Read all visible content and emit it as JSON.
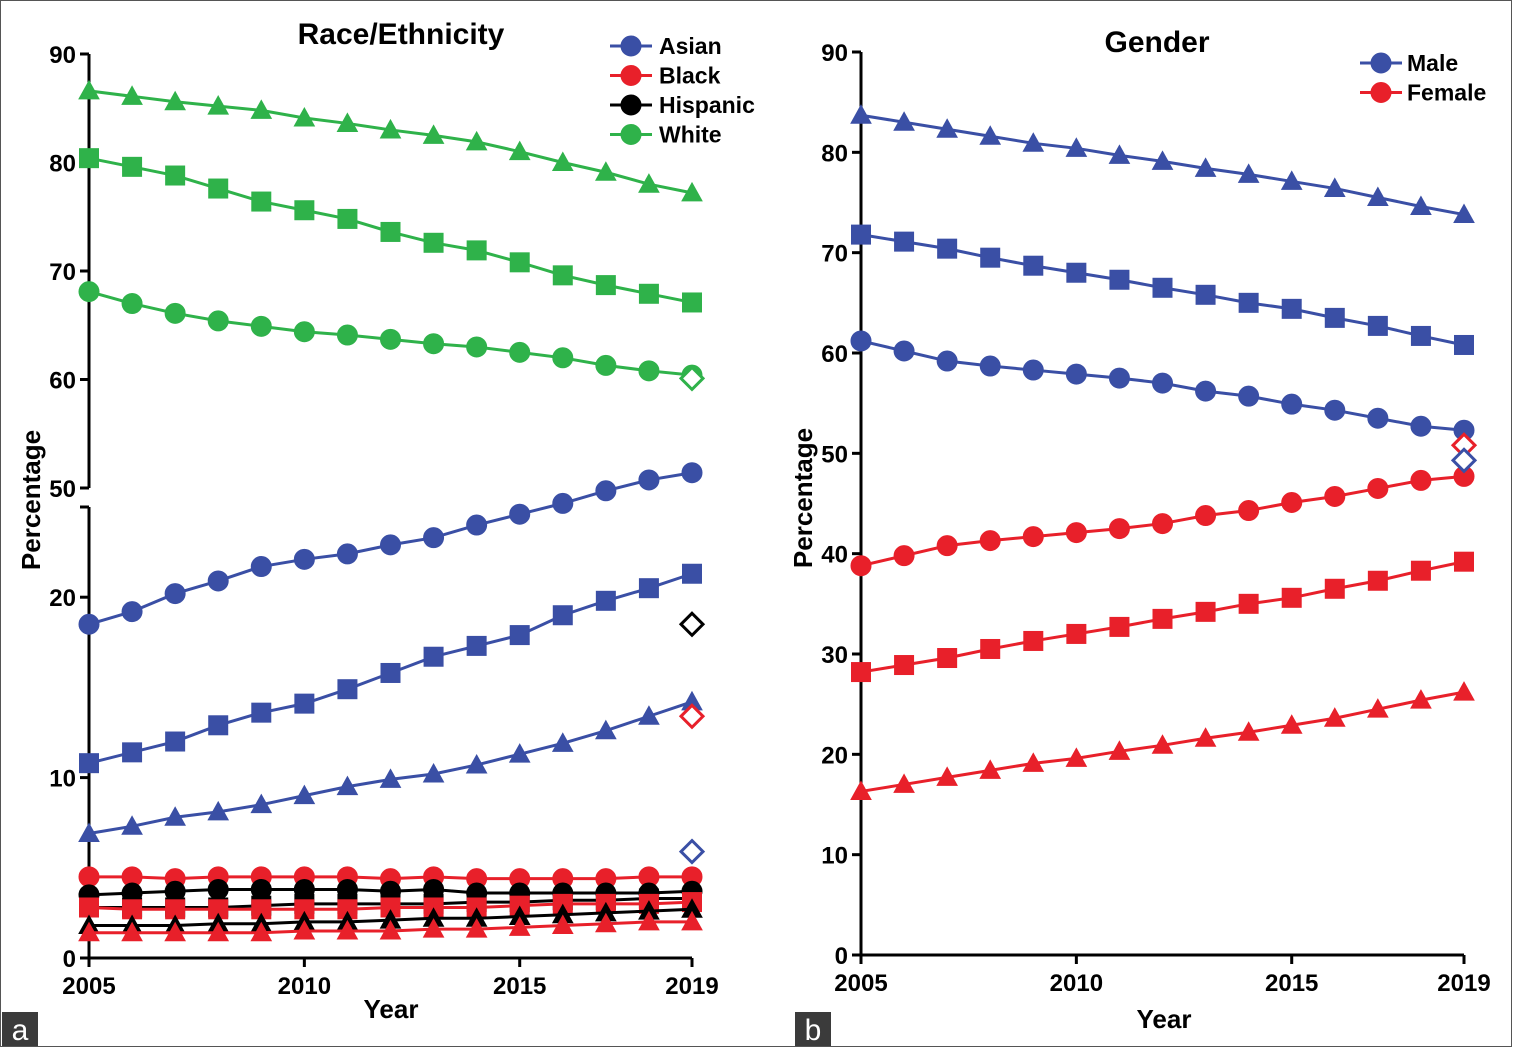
{
  "chart_data": [
    {
      "panel": "a",
      "type": "line",
      "title": "Race/Ethnicity",
      "xlabel": "Year",
      "ylabel": "Percentage",
      "y_axis_broken": true,
      "ylim_lower": [
        0,
        25
      ],
      "ylim_upper": [
        50,
        90
      ],
      "yticks_lower": [
        "0",
        "10",
        "20"
      ],
      "yticks_upper": [
        "50",
        "60",
        "70",
        "80",
        "90"
      ],
      "xticks": [
        "2005",
        "2010",
        "2015",
        "2019"
      ],
      "x": [
        2005,
        2006,
        2007,
        2008,
        2009,
        2010,
        2011,
        2012,
        2013,
        2014,
        2015,
        2016,
        2017,
        2018,
        2019
      ],
      "legend": [
        {
          "label": "Asian",
          "color": "#3a4fa5"
        },
        {
          "label": "Black",
          "color": "#e8202a"
        },
        {
          "label": "Hispanic",
          "color": "#000000"
        },
        {
          "label": "White",
          "color": "#2fb24a"
        }
      ],
      "legend_position": "top-right",
      "series": [
        {
          "group": "White",
          "color": "#2fb24a",
          "marker": "triangle",
          "values": [
            86.6,
            86.1,
            85.6,
            85.2,
            84.8,
            84.1,
            83.6,
            83.0,
            82.5,
            81.9,
            81.0,
            80.0,
            79.1,
            78.0,
            77.2
          ]
        },
        {
          "group": "White",
          "color": "#2fb24a",
          "marker": "square",
          "values": [
            80.4,
            79.6,
            78.8,
            77.6,
            76.4,
            75.6,
            74.8,
            73.6,
            72.6,
            71.9,
            70.8,
            69.6,
            68.7,
            67.9,
            67.1
          ]
        },
        {
          "group": "White",
          "color": "#2fb24a",
          "marker": "circle",
          "values": [
            68.1,
            67.0,
            66.1,
            65.4,
            64.9,
            64.4,
            64.1,
            63.7,
            63.3,
            63.0,
            62.5,
            62.0,
            61.3,
            60.8,
            60.4
          ]
        },
        {
          "group": "Asian",
          "color": "#3a4fa5",
          "marker": "circle",
          "values": [
            18.5,
            19.2,
            20.2,
            20.9,
            21.7,
            22.1,
            22.4,
            22.9,
            23.3,
            24.0,
            24.6,
            25.2,
            25.9,
            26.5,
            26.9
          ]
        },
        {
          "group": "Asian",
          "color": "#3a4fa5",
          "marker": "square",
          "values": [
            10.8,
            11.4,
            12.0,
            12.9,
            13.6,
            14.1,
            14.9,
            15.8,
            16.7,
            17.3,
            17.9,
            19.0,
            19.8,
            20.5,
            21.3
          ]
        },
        {
          "group": "Asian",
          "color": "#3a4fa5",
          "marker": "triangle",
          "values": [
            6.9,
            7.3,
            7.8,
            8.1,
            8.5,
            9.0,
            9.5,
            9.9,
            10.2,
            10.7,
            11.3,
            11.9,
            12.6,
            13.4,
            14.2
          ]
        },
        {
          "group": "Black",
          "color": "#e8202a",
          "marker": "circle",
          "values": [
            4.5,
            4.5,
            4.4,
            4.5,
            4.5,
            4.5,
            4.5,
            4.4,
            4.5,
            4.4,
            4.4,
            4.4,
            4.4,
            4.5,
            4.5
          ]
        },
        {
          "group": "Hispanic",
          "color": "#000000",
          "marker": "circle",
          "values": [
            3.5,
            3.6,
            3.7,
            3.8,
            3.8,
            3.8,
            3.8,
            3.7,
            3.8,
            3.6,
            3.6,
            3.6,
            3.6,
            3.6,
            3.7
          ]
        },
        {
          "group": "Hispanic",
          "color": "#000000",
          "marker": "square",
          "values": [
            2.8,
            2.8,
            2.8,
            2.8,
            2.9,
            3.0,
            3.0,
            3.0,
            3.0,
            3.1,
            3.1,
            3.2,
            3.2,
            3.3,
            3.3
          ]
        },
        {
          "group": "Black",
          "color": "#e8202a",
          "marker": "square",
          "values": [
            2.8,
            2.7,
            2.7,
            2.7,
            2.7,
            2.7,
            2.7,
            2.8,
            2.8,
            2.8,
            2.9,
            3.0,
            3.0,
            3.0,
            3.1
          ]
        },
        {
          "group": "Hispanic",
          "color": "#000000",
          "marker": "triangle",
          "values": [
            1.8,
            1.8,
            1.8,
            1.9,
            1.9,
            2.0,
            2.0,
            2.1,
            2.2,
            2.2,
            2.3,
            2.4,
            2.5,
            2.6,
            2.7
          ]
        },
        {
          "group": "Black",
          "color": "#e8202a",
          "marker": "triangle",
          "values": [
            1.4,
            1.4,
            1.4,
            1.4,
            1.4,
            1.5,
            1.5,
            1.5,
            1.6,
            1.6,
            1.7,
            1.8,
            1.9,
            2.0,
            2.0
          ]
        }
      ],
      "reference_points": [
        {
          "x": 2019,
          "value": 60.1,
          "color": "#2fb24a"
        },
        {
          "x": 2019,
          "value": 18.5,
          "color": "#000000"
        },
        {
          "x": 2019,
          "value": 13.4,
          "color": "#e8202a"
        },
        {
          "x": 2019,
          "value": 5.9,
          "color": "#3a4fa5"
        }
      ]
    },
    {
      "panel": "b",
      "type": "line",
      "title": "Gender",
      "xlabel": "Year",
      "ylabel": "Percentage",
      "ylim": [
        0,
        90
      ],
      "yticks": [
        "0",
        "10",
        "20",
        "30",
        "40",
        "50",
        "60",
        "70",
        "80",
        "90"
      ],
      "xticks": [
        "2005",
        "2010",
        "2015",
        "2019"
      ],
      "x": [
        2005,
        2006,
        2007,
        2008,
        2009,
        2010,
        2011,
        2012,
        2013,
        2014,
        2015,
        2016,
        2017,
        2018,
        2019
      ],
      "legend": [
        {
          "label": "Male",
          "color": "#3a4fa5"
        },
        {
          "label": "Female",
          "color": "#e8202a"
        }
      ],
      "legend_position": "top-right",
      "series": [
        {
          "group": "Male",
          "color": "#3a4fa5",
          "marker": "triangle",
          "values": [
            83.7,
            83.0,
            82.3,
            81.6,
            80.9,
            80.4,
            79.7,
            79.1,
            78.4,
            77.8,
            77.1,
            76.4,
            75.5,
            74.6,
            73.8
          ]
        },
        {
          "group": "Male",
          "color": "#3a4fa5",
          "marker": "square",
          "values": [
            71.8,
            71.1,
            70.4,
            69.5,
            68.7,
            68.0,
            67.3,
            66.5,
            65.8,
            65.0,
            64.4,
            63.5,
            62.7,
            61.7,
            60.8
          ]
        },
        {
          "group": "Male",
          "color": "#3a4fa5",
          "marker": "circle",
          "values": [
            61.2,
            60.2,
            59.2,
            58.7,
            58.3,
            57.9,
            57.5,
            57.0,
            56.2,
            55.7,
            54.9,
            54.3,
            53.5,
            52.7,
            52.3
          ]
        },
        {
          "group": "Female",
          "color": "#e8202a",
          "marker": "circle",
          "values": [
            38.8,
            39.8,
            40.8,
            41.3,
            41.7,
            42.1,
            42.5,
            43.0,
            43.8,
            44.3,
            45.1,
            45.7,
            46.5,
            47.3,
            47.7
          ]
        },
        {
          "group": "Female",
          "color": "#e8202a",
          "marker": "square",
          "values": [
            28.2,
            28.9,
            29.6,
            30.5,
            31.3,
            32.0,
            32.7,
            33.5,
            34.2,
            35.0,
            35.6,
            36.5,
            37.3,
            38.3,
            39.2
          ]
        },
        {
          "group": "Female",
          "color": "#e8202a",
          "marker": "triangle",
          "values": [
            16.3,
            17.0,
            17.7,
            18.4,
            19.1,
            19.6,
            20.3,
            20.9,
            21.6,
            22.2,
            22.9,
            23.6,
            24.5,
            25.4,
            26.2
          ]
        }
      ],
      "reference_points": [
        {
          "x": 2019,
          "value": 50.8,
          "color": "#e8202a"
        },
        {
          "x": 2019,
          "value": 49.3,
          "color": "#3a4fa5"
        }
      ]
    }
  ],
  "panel_labels": {
    "a": "a",
    "b": "b"
  }
}
